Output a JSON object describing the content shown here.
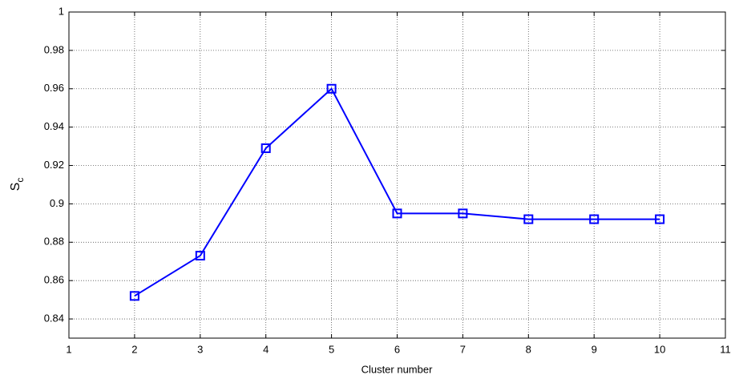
{
  "chart_data": {
    "type": "line",
    "xlabel": "Cluster number",
    "ylabel": "S",
    "ylabel_subscript": "c",
    "x": [
      2,
      3,
      4,
      5,
      6,
      7,
      8,
      9,
      10
    ],
    "series": [
      {
        "color": "#0000ff",
        "marker": "square",
        "values": [
          0.852,
          0.873,
          0.929,
          0.96,
          0.895,
          0.895,
          0.892,
          0.892,
          0.892
        ]
      }
    ],
    "xlim": [
      1,
      11
    ],
    "xticks": [
      1,
      2,
      3,
      4,
      5,
      6,
      7,
      8,
      9,
      10,
      11
    ],
    "ylim": [
      0.83,
      1
    ],
    "yticks": [
      0.84,
      0.86,
      0.88,
      0.9,
      0.92,
      0.94,
      0.96,
      0.98,
      1
    ],
    "grid": true
  }
}
